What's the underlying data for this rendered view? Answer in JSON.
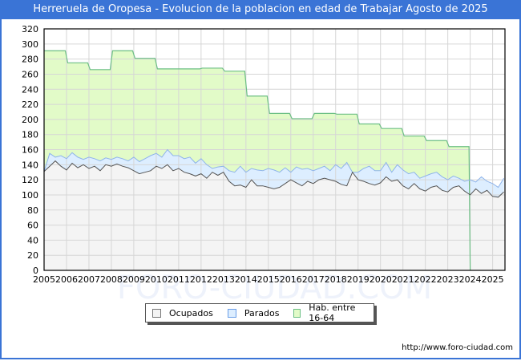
{
  "header": {
    "title": "Herreruela de Oropesa - Evolucion de la poblacion en edad de Trabajar Agosto de 2025"
  },
  "footer": {
    "url": "http://www.foro-ciudad.com"
  },
  "watermark": "FORO-CIUDAD.COM",
  "legend": {
    "items": [
      {
        "label": "Ocupados",
        "color": "#f4f4f4",
        "border": "#777777"
      },
      {
        "label": "Parados",
        "color": "#ddeeff",
        "border": "#6a9ee8"
      },
      {
        "label": "Hab. entre 16-64",
        "color": "#e2fbc8",
        "border": "#6cbf84"
      }
    ]
  },
  "colors": {
    "title_bg": "#3a74d6",
    "hab_fill": "#e2fbc8",
    "hab_line": "#6cbf84",
    "parados_fill": "#ddeeff",
    "parados_line": "#8fb4ea",
    "ocupados_fill": "#f4f4f4",
    "ocupados_line": "#555555",
    "grid": "#d6d6d6"
  },
  "chart_data": {
    "type": "area",
    "title": "Herreruela de Oropesa - Evolucion de la poblacion en edad de Trabajar Agosto de 2025",
    "xlabel": "",
    "ylabel": "",
    "ylim": [
      0,
      320
    ],
    "yticks": [
      0,
      20,
      40,
      60,
      80,
      100,
      120,
      140,
      160,
      180,
      200,
      220,
      240,
      260,
      280,
      300,
      320
    ],
    "categories": [
      "2005",
      "2006",
      "2007",
      "2008",
      "2009",
      "2010",
      "2011",
      "2012",
      "2013",
      "2014",
      "2015",
      "2016",
      "2017",
      "2018",
      "2019",
      "2020",
      "2021",
      "2022",
      "2023",
      "2024",
      "2025"
    ],
    "grid": true,
    "legend_position": "bottom",
    "series": [
      {
        "name": "Hab. entre 16-64",
        "note": "yearly step values (2005-2023), series ends at start of 2024",
        "x": [
          2005,
          2006,
          2007,
          2008,
          2009,
          2010,
          2011,
          2012,
          2013,
          2014,
          2015,
          2016,
          2017,
          2018,
          2019,
          2020,
          2021,
          2022,
          2023
        ],
        "values": [
          291,
          275,
          266,
          291,
          281,
          267,
          267,
          268,
          264,
          231,
          208,
          201,
          208,
          207,
          194,
          188,
          178,
          172,
          164
        ]
      },
      {
        "name": "Parados",
        "note": "stacked top (Ocupados + Parados), approximate quarterly readings",
        "x": [
          2005.0,
          2005.25,
          2005.5,
          2005.75,
          2006.0,
          2006.25,
          2006.5,
          2006.75,
          2007.0,
          2007.25,
          2007.5,
          2007.75,
          2008.0,
          2008.25,
          2008.5,
          2008.75,
          2009.0,
          2009.25,
          2009.5,
          2009.75,
          2010.0,
          2010.25,
          2010.5,
          2010.75,
          2011.0,
          2011.25,
          2011.5,
          2011.75,
          2012.0,
          2012.25,
          2012.5,
          2012.75,
          2013.0,
          2013.25,
          2013.5,
          2013.75,
          2014.0,
          2014.25,
          2014.5,
          2014.75,
          2015.0,
          2015.25,
          2015.5,
          2015.75,
          2016.0,
          2016.25,
          2016.5,
          2016.75,
          2017.0,
          2017.25,
          2017.5,
          2017.75,
          2018.0,
          2018.25,
          2018.5,
          2018.75,
          2019.0,
          2019.25,
          2019.5,
          2019.75,
          2020.0,
          2020.25,
          2020.5,
          2020.75,
          2021.0,
          2021.25,
          2021.5,
          2021.75,
          2022.0,
          2022.25,
          2022.5,
          2022.75,
          2023.0,
          2023.25,
          2023.5,
          2023.75,
          2024.0,
          2024.25,
          2024.5,
          2024.75,
          2025.0,
          2025.25,
          2025.5
        ],
        "values": [
          131,
          155,
          150,
          152,
          148,
          156,
          150,
          147,
          150,
          148,
          145,
          149,
          147,
          150,
          148,
          145,
          150,
          144,
          148,
          152,
          155,
          150,
          160,
          152,
          152,
          148,
          150,
          142,
          148,
          140,
          135,
          137,
          138,
          132,
          130,
          138,
          130,
          135,
          133,
          132,
          135,
          133,
          130,
          136,
          130,
          137,
          134,
          135,
          132,
          135,
          138,
          132,
          140,
          135,
          143,
          130,
          130,
          135,
          138,
          132,
          132,
          143,
          130,
          140,
          133,
          128,
          130,
          122,
          125,
          128,
          130,
          124,
          120,
          125,
          122,
          118,
          120,
          117,
          124,
          118,
          115,
          110,
          122
        ]
      },
      {
        "name": "Ocupados",
        "note": "approximate quarterly readings",
        "x": [
          2005.0,
          2005.25,
          2005.5,
          2005.75,
          2006.0,
          2006.25,
          2006.5,
          2006.75,
          2007.0,
          2007.25,
          2007.5,
          2007.75,
          2008.0,
          2008.25,
          2008.5,
          2008.75,
          2009.0,
          2009.25,
          2009.5,
          2009.75,
          2010.0,
          2010.25,
          2010.5,
          2010.75,
          2011.0,
          2011.25,
          2011.5,
          2011.75,
          2012.0,
          2012.25,
          2012.5,
          2012.75,
          2013.0,
          2013.25,
          2013.5,
          2013.75,
          2014.0,
          2014.25,
          2014.5,
          2014.75,
          2015.0,
          2015.25,
          2015.5,
          2015.75,
          2016.0,
          2016.25,
          2016.5,
          2016.75,
          2017.0,
          2017.25,
          2017.5,
          2017.75,
          2018.0,
          2018.25,
          2018.5,
          2018.75,
          2019.0,
          2019.25,
          2019.5,
          2019.75,
          2020.0,
          2020.25,
          2020.5,
          2020.75,
          2021.0,
          2021.25,
          2021.5,
          2021.75,
          2022.0,
          2022.25,
          2022.5,
          2022.75,
          2023.0,
          2023.25,
          2023.5,
          2023.75,
          2024.0,
          2024.25,
          2024.5,
          2024.75,
          2025.0,
          2025.25,
          2025.5
        ],
        "values": [
          131,
          138,
          145,
          138,
          133,
          142,
          136,
          140,
          135,
          138,
          132,
          140,
          138,
          141,
          138,
          136,
          132,
          128,
          130,
          132,
          138,
          135,
          140,
          132,
          135,
          130,
          128,
          125,
          128,
          122,
          130,
          126,
          130,
          118,
          112,
          113,
          110,
          120,
          112,
          112,
          110,
          108,
          110,
          115,
          120,
          116,
          112,
          118,
          115,
          120,
          122,
          120,
          118,
          114,
          112,
          130,
          120,
          118,
          115,
          113,
          116,
          124,
          118,
          120,
          112,
          108,
          115,
          108,
          105,
          110,
          112,
          106,
          104,
          110,
          112,
          105,
          100,
          108,
          102,
          106,
          98,
          97,
          104
        ]
      }
    ]
  }
}
